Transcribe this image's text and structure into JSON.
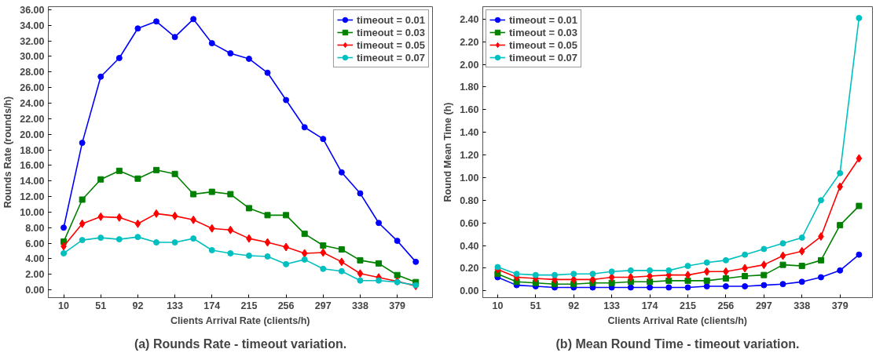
{
  "chart_data": [
    {
      "type": "line",
      "title": "(a) Rounds Rate - timeout variation.",
      "xlabel": "Clients Arrival Rate (clients/h)",
      "ylabel": "Rounds Rate (rounds/h)",
      "x": [
        10,
        30.5,
        51,
        71.5,
        92,
        112.5,
        133,
        153.5,
        174,
        194.5,
        215,
        235.5,
        256,
        276.5,
        297,
        317.5,
        338,
        358.5,
        379,
        399.5
      ],
      "xlim": [
        -7,
        418
      ],
      "ylim": [
        -1,
        36.4
      ],
      "xticks": [
        10,
        51,
        92,
        133,
        174,
        215,
        256,
        297,
        338,
        379
      ],
      "yticks": [
        {
          "value": 0,
          "label": "0.00"
        },
        {
          "value": 2,
          "label": "2.00"
        },
        {
          "value": 4,
          "label": "4.00"
        },
        {
          "value": 6,
          "label": "6.00"
        },
        {
          "value": 8,
          "label": "8.00"
        },
        {
          "value": 10,
          "label": "10.00"
        },
        {
          "value": 12,
          "label": "12.00"
        },
        {
          "value": 14,
          "label": "14.00"
        },
        {
          "value": 16,
          "label": "16.00"
        },
        {
          "value": 18,
          "label": "18.00"
        },
        {
          "value": 20,
          "label": "20.00"
        },
        {
          "value": 22,
          "label": "22.00"
        },
        {
          "value": 24,
          "label": "24.00"
        },
        {
          "value": 26,
          "label": "26.00"
        },
        {
          "value": 28,
          "label": "28.00"
        },
        {
          "value": 30,
          "label": "30.00"
        },
        {
          "value": 32,
          "label": "32.00"
        },
        {
          "value": 34,
          "label": "34.00"
        },
        {
          "value": 36,
          "label": "36.00"
        }
      ],
      "grid": false,
      "legend": "top right",
      "line_style": "solid",
      "series": [
        {
          "name": "timeout = 0.01",
          "color": "#0000ff",
          "marker": "circle",
          "values": [
            8.0,
            18.9,
            27.4,
            29.8,
            33.6,
            34.5,
            32.5,
            34.8,
            31.7,
            30.4,
            29.7,
            27.9,
            24.4,
            20.9,
            19.4,
            15.1,
            12.4,
            8.6,
            6.3,
            3.6
          ]
        },
        {
          "name": "timeout = 0.03",
          "color": "#008000",
          "marker": "square",
          "values": [
            6.2,
            11.6,
            14.2,
            15.3,
            14.3,
            15.4,
            14.9,
            12.3,
            12.6,
            12.3,
            10.5,
            9.6,
            9.6,
            7.2,
            5.7,
            5.2,
            3.8,
            3.4,
            1.9,
            1.0
          ]
        },
        {
          "name": "timeout = 0.05",
          "color": "#ff0000",
          "marker": "diamond",
          "values": [
            5.6,
            8.5,
            9.4,
            9.3,
            8.5,
            9.8,
            9.5,
            9.0,
            7.9,
            7.7,
            6.6,
            6.1,
            5.5,
            4.7,
            4.8,
            3.6,
            2.1,
            1.6,
            1.1,
            0.5
          ]
        },
        {
          "name": "timeout = 0.07",
          "color": "#00bfbf",
          "marker": "circle",
          "values": [
            4.7,
            6.4,
            6.7,
            6.5,
            6.8,
            6.1,
            6.1,
            6.6,
            5.1,
            4.7,
            4.4,
            4.3,
            3.3,
            3.9,
            2.7,
            2.4,
            1.2,
            1.2,
            1.0,
            0.6
          ]
        }
      ]
    },
    {
      "type": "line",
      "title": "(b) Mean Round Time - timeout variation.",
      "xlabel": "Clients Arrival Rate (clients/h)",
      "ylabel": "Round Mean Time (h)",
      "x": [
        10,
        30.5,
        51,
        71.5,
        92,
        112.5,
        133,
        153.5,
        174,
        194.5,
        215,
        235.5,
        256,
        276.5,
        297,
        317.5,
        338,
        358.5,
        379,
        399.5
      ],
      "xlim": [
        -6,
        414
      ],
      "ylim": [
        -0.06,
        2.51
      ],
      "xticks": [
        10,
        51,
        92,
        133,
        174,
        215,
        256,
        297,
        338,
        379
      ],
      "yticks": [
        {
          "value": 0,
          "label": "0.00"
        },
        {
          "value": 0.2,
          "label": "0.20"
        },
        {
          "value": 0.4,
          "label": "0.40"
        },
        {
          "value": 0.6,
          "label": "0.60"
        },
        {
          "value": 0.8,
          "label": "0.80"
        },
        {
          "value": 1.0,
          "label": "1.00"
        },
        {
          "value": 1.2,
          "label": "1.20"
        },
        {
          "value": 1.4,
          "label": "1.40"
        },
        {
          "value": 1.6,
          "label": "1.60"
        },
        {
          "value": 1.8,
          "label": "1.80"
        },
        {
          "value": 2.0,
          "label": "2.00"
        },
        {
          "value": 2.2,
          "label": "2.20"
        },
        {
          "value": 2.4,
          "label": "2.40"
        }
      ],
      "grid": false,
      "legend": "top left",
      "line_style": "solid",
      "series": [
        {
          "name": "timeout = 0.01",
          "color": "#0000ff",
          "marker": "circle",
          "values": [
            0.12,
            0.05,
            0.04,
            0.03,
            0.03,
            0.03,
            0.03,
            0.03,
            0.03,
            0.03,
            0.03,
            0.04,
            0.04,
            0.04,
            0.05,
            0.06,
            0.08,
            0.12,
            0.18,
            0.32
          ]
        },
        {
          "name": "timeout = 0.03",
          "color": "#008000",
          "marker": "square",
          "values": [
            0.15,
            0.08,
            0.07,
            0.06,
            0.06,
            0.07,
            0.07,
            0.08,
            0.08,
            0.09,
            0.09,
            0.09,
            0.11,
            0.13,
            0.14,
            0.23,
            0.22,
            0.27,
            0.58,
            0.75
          ]
        },
        {
          "name": "timeout = 0.05",
          "color": "#ff0000",
          "marker": "diamond",
          "values": [
            0.19,
            0.12,
            0.11,
            0.1,
            0.1,
            0.1,
            0.12,
            0.12,
            0.13,
            0.14,
            0.14,
            0.17,
            0.17,
            0.2,
            0.23,
            0.31,
            0.35,
            0.48,
            0.92,
            1.17
          ]
        },
        {
          "name": "timeout = 0.07",
          "color": "#00bfbf",
          "marker": "circle",
          "values": [
            0.21,
            0.15,
            0.14,
            0.14,
            0.15,
            0.15,
            0.17,
            0.18,
            0.18,
            0.18,
            0.22,
            0.25,
            0.27,
            0.32,
            0.37,
            0.42,
            0.47,
            0.8,
            1.04,
            2.41
          ]
        }
      ]
    }
  ]
}
